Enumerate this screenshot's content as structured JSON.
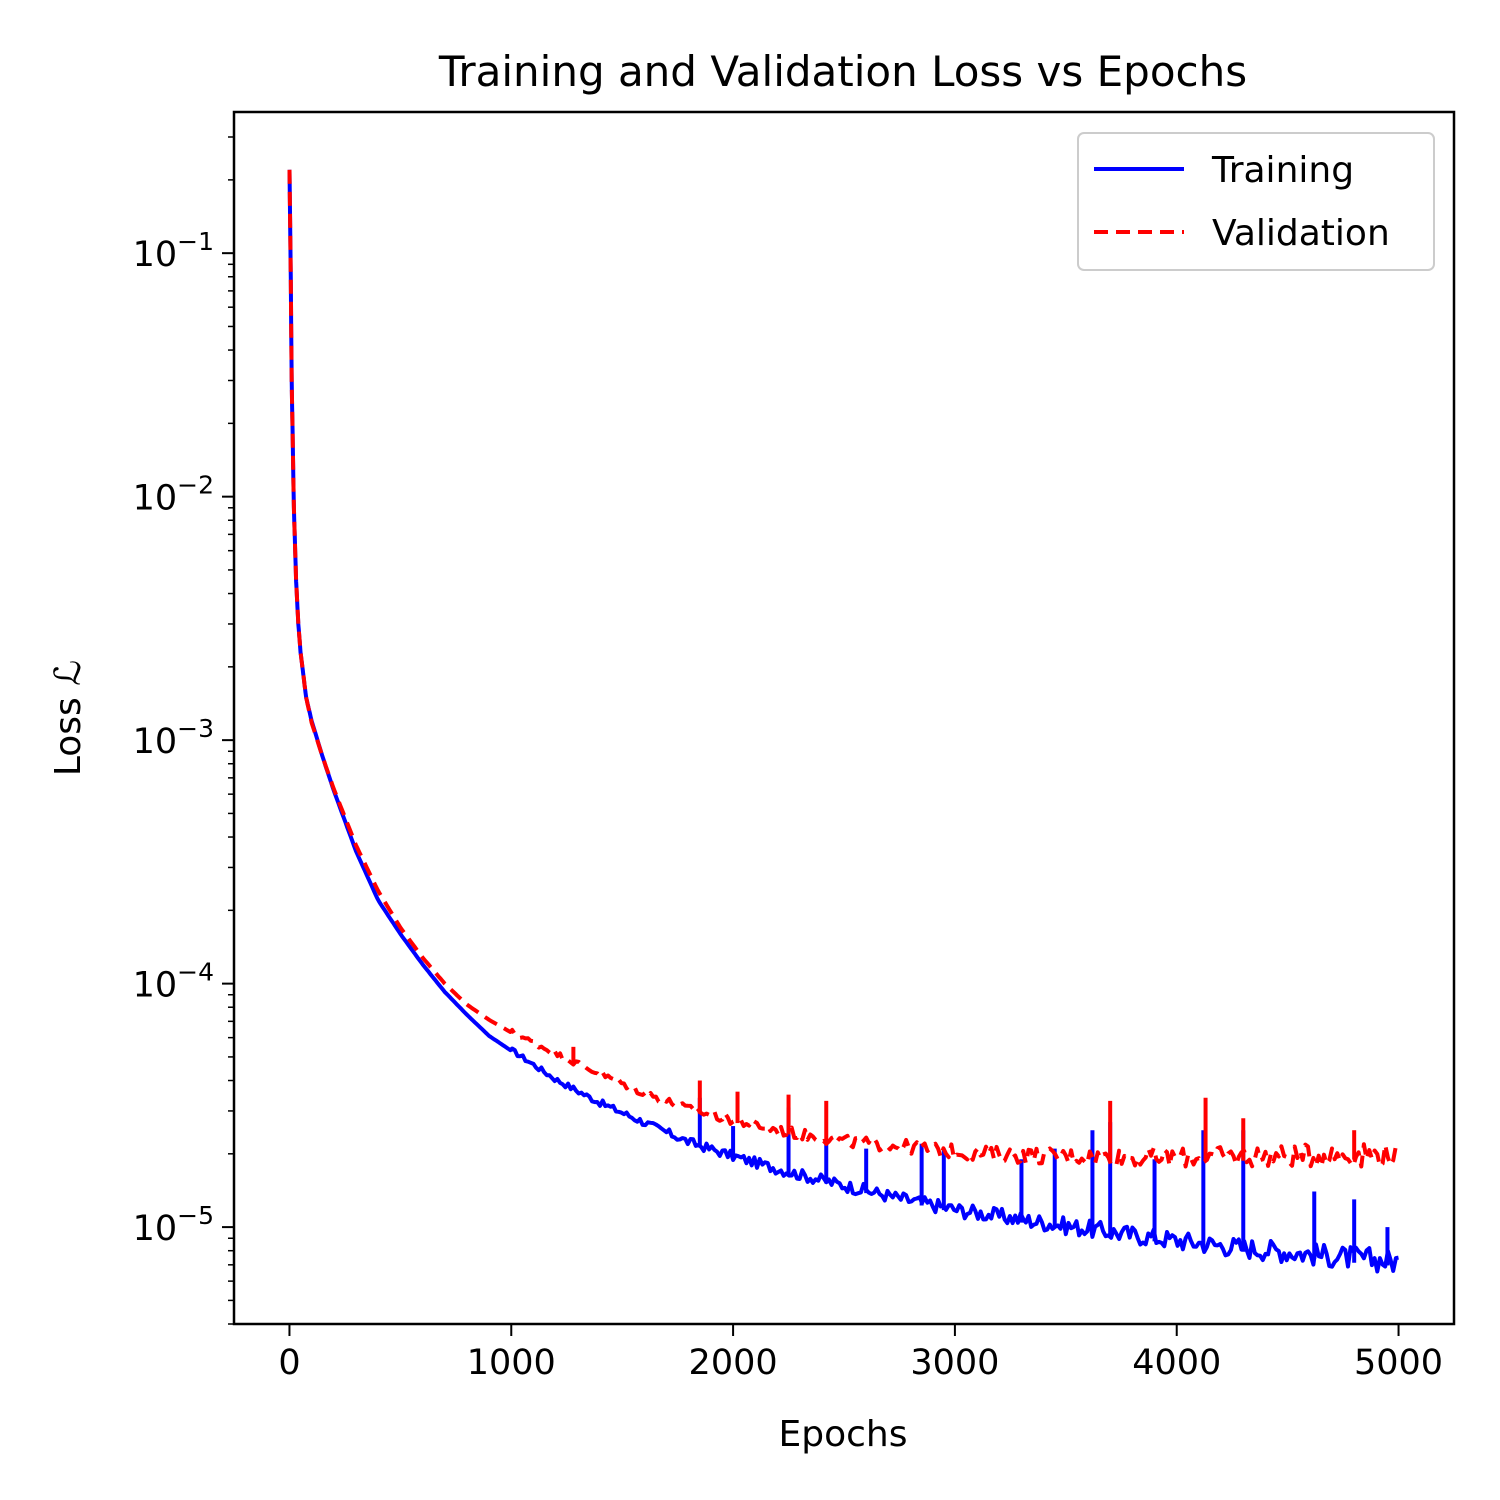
{
  "chart_data": {
    "type": "line",
    "title": "Training and Validation Loss vs Epochs",
    "xlabel": "Epochs",
    "ylabel": "Loss ℒ",
    "xlim": [
      -250,
      5250
    ],
    "ylim": [
      4e-06,
      0.38
    ],
    "yscale": "log",
    "x_ticks": [
      0,
      1000,
      2000,
      3000,
      4000,
      5000
    ],
    "x_tick_labels": [
      "0",
      "1000",
      "2000",
      "3000",
      "4000",
      "5000"
    ],
    "y_ticks": [
      0.1,
      0.01,
      0.001,
      0.0001,
      1e-05
    ],
    "y_tick_labels": [
      {
        "base": "10",
        "exp": "−1"
      },
      {
        "base": "10",
        "exp": "−2"
      },
      {
        "base": "10",
        "exp": "−3"
      },
      {
        "base": "10",
        "exp": "−4"
      },
      {
        "base": "10",
        "exp": "−5"
      }
    ],
    "grid": false,
    "legend_position": "top-right",
    "series": [
      {
        "name": "Training",
        "color": "#0000ff",
        "style": "solid",
        "x": [
          0,
          5,
          10,
          20,
          30,
          40,
          50,
          75,
          100,
          150,
          200,
          300,
          400,
          500,
          600,
          700,
          800,
          900,
          1000,
          1200,
          1400,
          1600,
          1800,
          2000,
          2250,
          2500,
          2750,
          3000,
          3250,
          3500,
          3750,
          4000,
          4250,
          4500,
          4750,
          5000
        ],
        "y": [
          0.22,
          0.1,
          0.03,
          0.009,
          0.0045,
          0.003,
          0.0023,
          0.0015,
          0.0012,
          0.00085,
          0.00062,
          0.00035,
          0.00022,
          0.00016,
          0.00012,
          9.25e-05,
          7.45e-05,
          6.1e-05,
          5.3e-05,
          4e-05,
          3.2e-05,
          2.65e-05,
          2.2e-05,
          1.92e-05,
          1.65e-05,
          1.45e-05,
          1.28e-05,
          1.15e-05,
          1.06e-05,
          9.8e-06,
          9.1e-06,
          8.5e-06,
          8e-06,
          7.6e-06,
          7.2e-06,
          6.9e-06
        ],
        "spikes": [
          {
            "x": 1850,
            "y": 3.4e-05
          },
          {
            "x": 2000,
            "y": 2.6e-05
          },
          {
            "x": 2250,
            "y": 3.1e-05
          },
          {
            "x": 2420,
            "y": 2.3e-05
          },
          {
            "x": 2600,
            "y": 2.1e-05
          },
          {
            "x": 2850,
            "y": 2.2e-05
          },
          {
            "x": 2950,
            "y": 2.1e-05
          },
          {
            "x": 3300,
            "y": 1.9e-05
          },
          {
            "x": 3450,
            "y": 2.1e-05
          },
          {
            "x": 3620,
            "y": 2.5e-05
          },
          {
            "x": 3700,
            "y": 2.7e-05
          },
          {
            "x": 3900,
            "y": 1.9e-05
          },
          {
            "x": 4120,
            "y": 2.5e-05
          },
          {
            "x": 4300,
            "y": 2.5e-05
          },
          {
            "x": 4620,
            "y": 1.4e-05
          },
          {
            "x": 4800,
            "y": 1.3e-05
          },
          {
            "x": 4950,
            "y": 1e-05
          }
        ]
      },
      {
        "name": "Validation",
        "color": "#ff0000",
        "style": "dashed",
        "x": [
          0,
          5,
          10,
          20,
          30,
          40,
          50,
          75,
          100,
          150,
          200,
          300,
          400,
          500,
          600,
          700,
          800,
          900,
          1000,
          1200,
          1400,
          1600,
          1800,
          2000,
          2250,
          2500,
          2750,
          3000,
          3250,
          3500,
          3750,
          4000,
          4250,
          4500,
          4750,
          5000
        ],
        "y": [
          0.22,
          0.1,
          0.03,
          0.009,
          0.0045,
          0.003,
          0.0023,
          0.0015,
          0.00118,
          0.00085,
          0.00063,
          0.00037,
          0.00024,
          0.00017,
          0.000128,
          0.0001,
          8.2e-05,
          7.1e-05,
          6.3e-05,
          5.1e-05,
          4.2e-05,
          3.5e-05,
          3e-05,
          2.7e-05,
          2.4e-05,
          2.2e-05,
          2.1e-05,
          1.98e-05,
          1.92e-05,
          1.89e-05,
          1.87e-05,
          1.86e-05,
          1.87e-05,
          1.88e-05,
          1.89e-05,
          1.9e-05
        ],
        "spikes": [
          {
            "x": 1280,
            "y": 5.5e-05
          },
          {
            "x": 1850,
            "y": 4e-05
          },
          {
            "x": 2020,
            "y": 3.6e-05
          },
          {
            "x": 2250,
            "y": 3.5e-05
          },
          {
            "x": 2420,
            "y": 3.3e-05
          },
          {
            "x": 3700,
            "y": 3.3e-05
          },
          {
            "x": 4130,
            "y": 3.4e-05
          },
          {
            "x": 4300,
            "y": 2.8e-05
          },
          {
            "x": 4800,
            "y": 2.5e-05
          }
        ]
      }
    ]
  },
  "legend": {
    "items": [
      {
        "label": "Training",
        "color": "#0000ff",
        "dash": ""
      },
      {
        "label": "Validation",
        "color": "#ff0000",
        "dash": "14,8"
      }
    ]
  }
}
